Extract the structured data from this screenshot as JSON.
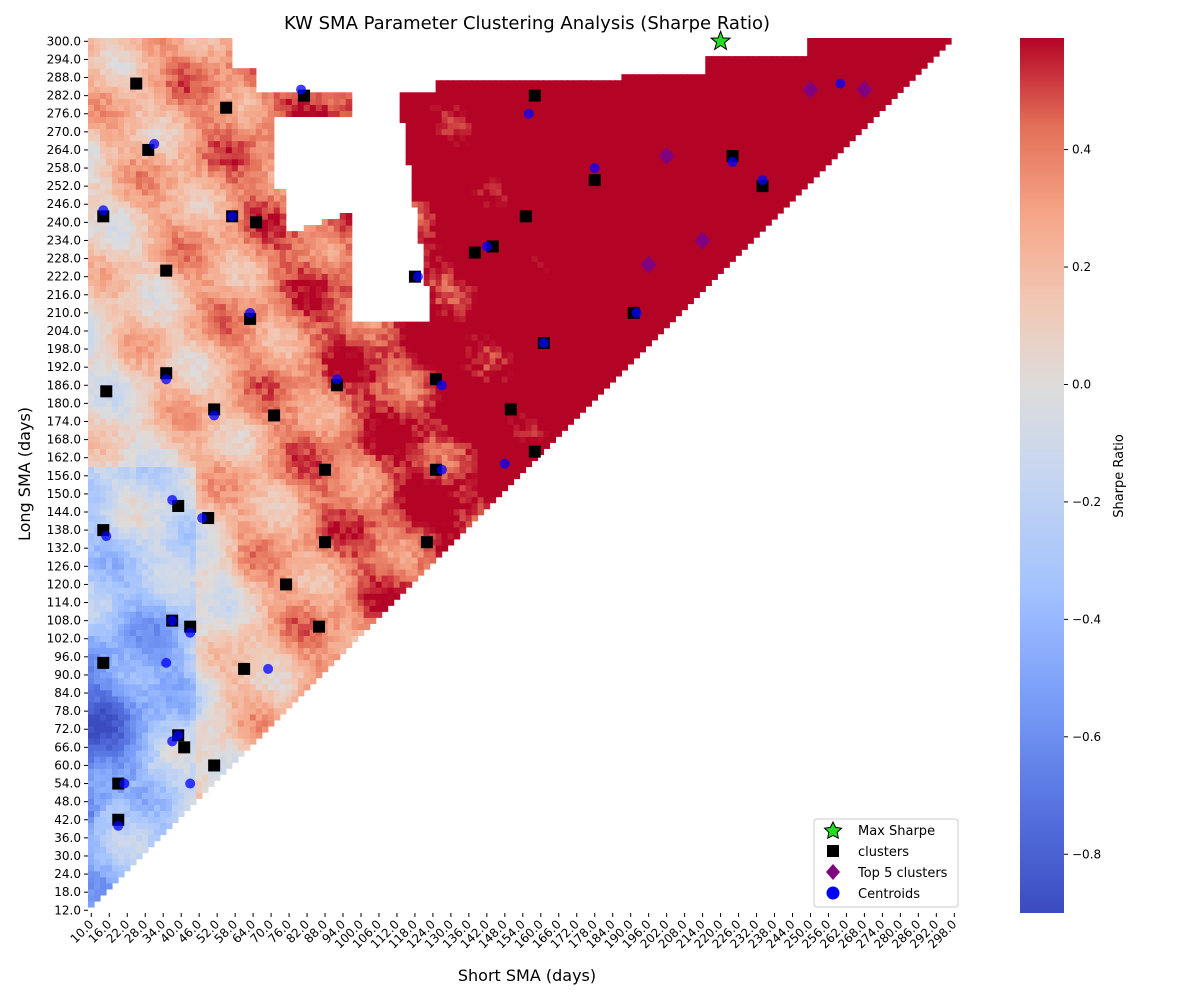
{
  "chart_data": {
    "type": "heatmap",
    "title": "KW SMA Parameter Clustering Analysis (Sharpe Ratio)",
    "xlabel": "Short SMA (days)",
    "ylabel": "Long SMA (days)",
    "x_range": [
      10,
      300
    ],
    "y_range": [
      12,
      300
    ],
    "x_ticks": [
      "10.0",
      "16.0",
      "22.0",
      "28.0",
      "34.0",
      "40.0",
      "46.0",
      "52.0",
      "58.0",
      "64.0",
      "70.0",
      "76.0",
      "82.0",
      "88.0",
      "94.0",
      "100.0",
      "106.0",
      "112.0",
      "118.0",
      "124.0",
      "130.0",
      "136.0",
      "142.0",
      "148.0",
      "154.0",
      "160.0",
      "166.0",
      "172.0",
      "178.0",
      "184.0",
      "190.0",
      "196.0",
      "202.0",
      "208.0",
      "214.0",
      "220.0",
      "226.0",
      "232.0",
      "238.0",
      "244.0",
      "250.0",
      "256.0",
      "262.0",
      "268.0",
      "274.0",
      "280.0",
      "286.0",
      "292.0",
      "298.0"
    ],
    "y_ticks": [
      "300.0",
      "294.0",
      "288.0",
      "282.0",
      "276.0",
      "270.0",
      "264.0",
      "258.0",
      "252.0",
      "246.0",
      "240.0",
      "234.0",
      "228.0",
      "222.0",
      "216.0",
      "210.0",
      "204.0",
      "198.0",
      "192.0",
      "186.0",
      "180.0",
      "174.0",
      "168.0",
      "162.0",
      "156.0",
      "150.0",
      "144.0",
      "138.0",
      "132.0",
      "126.0",
      "120.0",
      "114.0",
      "108.0",
      "102.0",
      "96.0",
      "90.0",
      "84.0",
      "78.0",
      "72.0",
      "66.0",
      "60.0",
      "54.0",
      "48.0",
      "42.0",
      "36.0",
      "30.0",
      "24.0",
      "18.0",
      "12.0"
    ],
    "colorbar": {
      "label": "Sharpe Ratio",
      "min": -0.9,
      "max": 0.59,
      "ticks": [
        "0.4",
        "0.2",
        "0.0",
        "−0.2",
        "−0.4",
        "−0.6",
        "−0.8"
      ],
      "tick_values": [
        0.4,
        0.2,
        0.0,
        -0.2,
        -0.4,
        -0.6,
        -0.8
      ],
      "colormap": "coolwarm",
      "low_color": "#3b4cc0",
      "mid_color": "#dddddd",
      "high_color": "#b40426"
    },
    "legend": {
      "placement": "lower-right",
      "entries": [
        {
          "label": "Max Sharpe",
          "marker": "star",
          "color": "#22dd22"
        },
        {
          "label": "clusters",
          "marker": "square",
          "color": "#000000"
        },
        {
          "label": "Top 5 clusters",
          "marker": "diamond",
          "color": "#800080"
        },
        {
          "label": "Centroids",
          "marker": "circle",
          "color": "#0000ff"
        }
      ]
    },
    "max_sharpe": {
      "x": 220,
      "y": 300
    },
    "top5_clusters": [
      [
        202,
        262
      ],
      [
        214,
        234
      ],
      [
        196,
        226
      ],
      [
        250,
        284
      ],
      [
        268,
        284
      ]
    ],
    "clusters": [
      [
        25,
        286
      ],
      [
        55,
        278
      ],
      [
        29,
        264
      ],
      [
        14,
        242
      ],
      [
        57,
        242
      ],
      [
        65,
        240
      ],
      [
        35,
        224
      ],
      [
        63,
        208
      ],
      [
        15,
        184
      ],
      [
        35,
        190
      ],
      [
        51,
        178
      ],
      [
        71,
        176
      ],
      [
        14,
        138
      ],
      [
        39,
        146
      ],
      [
        49,
        142
      ],
      [
        37,
        108
      ],
      [
        43,
        106
      ],
      [
        75,
        120
      ],
      [
        61,
        92
      ],
      [
        19,
        54
      ],
      [
        14,
        94
      ],
      [
        39,
        70
      ],
      [
        41,
        66
      ],
      [
        51,
        60
      ],
      [
        19,
        42
      ],
      [
        81,
        282
      ],
      [
        92,
        186
      ],
      [
        88,
        158
      ],
      [
        88,
        134
      ],
      [
        86,
        106
      ],
      [
        118,
        222
      ],
      [
        125,
        188
      ],
      [
        125,
        158
      ],
      [
        122,
        134
      ],
      [
        138,
        230
      ],
      [
        144,
        232
      ],
      [
        150,
        178
      ],
      [
        155,
        242
      ],
      [
        158,
        282
      ],
      [
        158,
        164
      ],
      [
        161,
        200
      ],
      [
        178,
        254
      ],
      [
        191,
        210
      ],
      [
        224,
        262
      ],
      [
        234,
        252
      ]
    ],
    "centroids": [
      [
        14,
        244
      ],
      [
        31,
        266
      ],
      [
        57,
        242
      ],
      [
        63,
        210
      ],
      [
        80,
        284
      ],
      [
        15,
        136
      ],
      [
        35,
        188
      ],
      [
        37,
        148
      ],
      [
        51,
        176
      ],
      [
        47,
        142
      ],
      [
        37,
        108
      ],
      [
        43,
        104
      ],
      [
        35,
        94
      ],
      [
        69,
        92
      ],
      [
        21,
        54
      ],
      [
        43,
        54
      ],
      [
        19,
        40
      ],
      [
        37,
        68
      ],
      [
        39,
        70
      ],
      [
        119,
        222
      ],
      [
        92,
        188
      ],
      [
        127,
        186
      ],
      [
        127,
        158
      ],
      [
        148,
        160
      ],
      [
        142,
        232
      ],
      [
        156,
        276
      ],
      [
        178,
        258
      ],
      [
        192,
        210
      ],
      [
        161,
        200
      ],
      [
        224,
        260
      ],
      [
        234,
        254
      ],
      [
        260,
        286
      ]
    ],
    "grid": false
  }
}
